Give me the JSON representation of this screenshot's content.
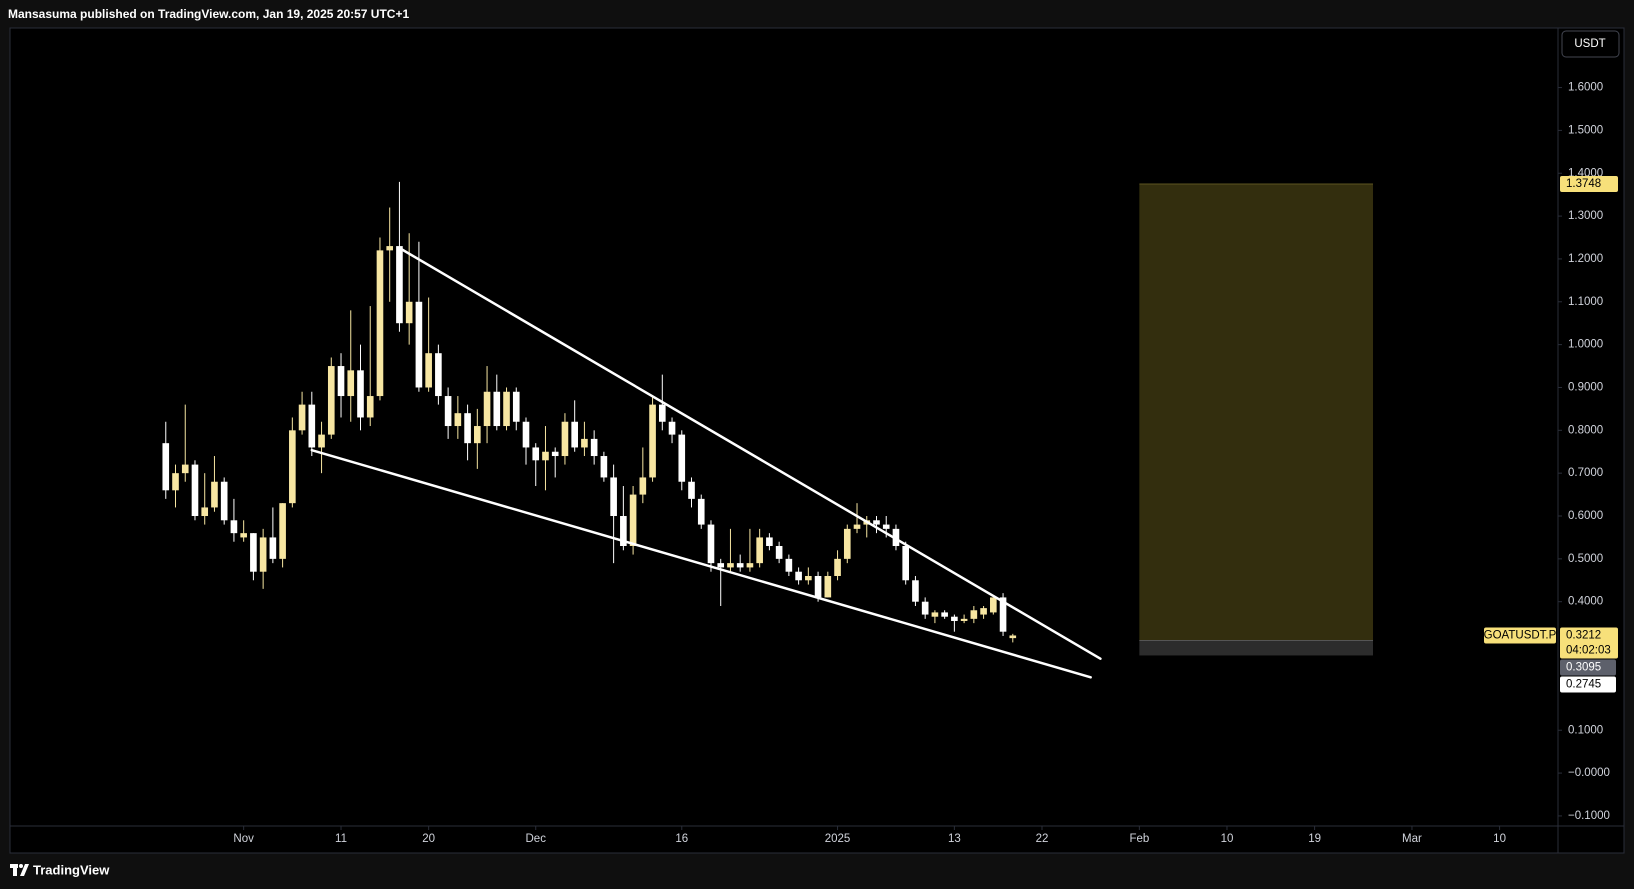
{
  "header": {
    "text": "Mansasuma published on TradingView.com, Jan 19, 2025 20:57 UTC+1"
  },
  "footer": {
    "brand": "TradingView"
  },
  "chart_data": {
    "type": "candlestick",
    "currency": "USDT",
    "up_color": "#f7e6a2",
    "down_color": "#ffffff",
    "x": [
      "2024-10-24",
      "2024-10-25",
      "2024-10-26",
      "2024-10-27",
      "2024-10-28",
      "2024-10-29",
      "2024-10-30",
      "2024-10-31",
      "2024-11-01",
      "2024-11-02",
      "2024-11-03",
      "2024-11-04",
      "2024-11-05",
      "2024-11-06",
      "2024-11-07",
      "2024-11-08",
      "2024-11-09",
      "2024-11-10",
      "2024-11-11",
      "2024-11-12",
      "2024-11-13",
      "2024-11-14",
      "2024-11-15",
      "2024-11-16",
      "2024-11-17",
      "2024-11-18",
      "2024-11-19",
      "2024-11-20",
      "2024-11-21",
      "2024-11-22",
      "2024-11-23",
      "2024-11-24",
      "2024-11-25",
      "2024-11-26",
      "2024-11-27",
      "2024-11-28",
      "2024-11-29",
      "2024-11-30",
      "2024-12-01",
      "2024-12-02",
      "2024-12-03",
      "2024-12-04",
      "2024-12-05",
      "2024-12-06",
      "2024-12-07",
      "2024-12-08",
      "2024-12-09",
      "2024-12-10",
      "2024-12-11",
      "2024-12-12",
      "2024-12-13",
      "2024-12-14",
      "2024-12-15",
      "2024-12-16",
      "2024-12-17",
      "2024-12-18",
      "2024-12-19",
      "2024-12-20",
      "2024-12-21",
      "2024-12-22",
      "2024-12-23",
      "2024-12-24",
      "2024-12-25",
      "2024-12-26",
      "2024-12-27",
      "2024-12-28",
      "2024-12-29",
      "2024-12-30",
      "2024-12-31",
      "2025-01-01",
      "2025-01-02",
      "2025-01-03",
      "2025-01-04",
      "2025-01-05",
      "2025-01-06",
      "2025-01-07",
      "2025-01-08",
      "2025-01-09",
      "2025-01-10",
      "2025-01-11",
      "2025-01-12",
      "2025-01-13",
      "2025-01-14",
      "2025-01-15",
      "2025-01-16",
      "2025-01-17",
      "2025-01-18",
      "2025-01-19"
    ],
    "open": [
      0.77,
      0.66,
      0.7,
      0.72,
      0.6,
      0.62,
      0.68,
      0.59,
      0.55,
      0.56,
      0.47,
      0.55,
      0.5,
      0.63,
      0.8,
      0.86,
      0.76,
      0.79,
      0.95,
      0.88,
      0.94,
      0.83,
      0.88,
      1.22,
      1.23,
      1.05,
      1.1,
      0.9,
      0.98,
      0.88,
      0.81,
      0.84,
      0.77,
      0.81,
      0.89,
      0.81,
      0.89,
      0.82,
      0.76,
      0.73,
      0.75,
      0.74,
      0.82,
      0.76,
      0.78,
      0.74,
      0.69,
      0.6,
      0.53,
      0.65,
      0.69,
      0.86,
      0.82,
      0.79,
      0.68,
      0.64,
      0.58,
      0.49,
      0.48,
      0.49,
      0.48,
      0.49,
      0.55,
      0.53,
      0.5,
      0.47,
      0.45,
      0.46,
      0.41,
      0.46,
      0.5,
      0.57,
      0.58,
      0.59,
      0.58,
      0.57,
      0.53,
      0.45,
      0.4,
      0.365,
      0.375,
      0.365,
      0.355,
      0.36,
      0.37,
      0.375,
      0.41,
      0.315
    ],
    "high": [
      0.82,
      0.72,
      0.86,
      0.73,
      0.7,
      0.74,
      0.69,
      0.64,
      0.59,
      0.56,
      0.57,
      0.62,
      0.63,
      0.83,
      0.89,
      0.89,
      0.82,
      0.97,
      0.98,
      1.08,
      1.0,
      1.09,
      1.25,
      1.32,
      1.38,
      1.26,
      1.24,
      1.11,
      1.0,
      0.9,
      0.88,
      0.86,
      0.85,
      0.95,
      0.93,
      0.9,
      0.9,
      0.83,
      0.77,
      0.81,
      0.76,
      0.84,
      0.87,
      0.82,
      0.8,
      0.75,
      0.72,
      0.67,
      0.67,
      0.76,
      0.88,
      0.93,
      0.83,
      0.8,
      0.69,
      0.65,
      0.59,
      0.5,
      0.57,
      0.51,
      0.57,
      0.57,
      0.56,
      0.54,
      0.51,
      0.48,
      0.48,
      0.47,
      0.47,
      0.52,
      0.58,
      0.63,
      0.6,
      0.6,
      0.6,
      0.58,
      0.54,
      0.46,
      0.41,
      0.38,
      0.38,
      0.37,
      0.37,
      0.39,
      0.39,
      0.41,
      0.42,
      0.325
    ],
    "low": [
      0.64,
      0.62,
      0.68,
      0.59,
      0.58,
      0.61,
      0.58,
      0.54,
      0.54,
      0.45,
      0.43,
      0.49,
      0.48,
      0.62,
      0.79,
      0.74,
      0.7,
      0.78,
      0.83,
      0.82,
      0.8,
      0.81,
      0.87,
      1.1,
      1.03,
      1.0,
      0.89,
      0.89,
      0.86,
      0.78,
      0.78,
      0.73,
      0.71,
      0.77,
      0.8,
      0.8,
      0.8,
      0.72,
      0.67,
      0.66,
      0.69,
      0.72,
      0.75,
      0.74,
      0.72,
      0.68,
      0.49,
      0.52,
      0.51,
      0.63,
      0.68,
      0.8,
      0.77,
      0.66,
      0.62,
      0.57,
      0.47,
      0.39,
      0.47,
      0.47,
      0.47,
      0.48,
      0.52,
      0.49,
      0.46,
      0.44,
      0.44,
      0.4,
      0.41,
      0.45,
      0.49,
      0.56,
      0.55,
      0.56,
      0.55,
      0.52,
      0.44,
      0.39,
      0.36,
      0.35,
      0.36,
      0.33,
      0.35,
      0.35,
      0.36,
      0.37,
      0.32,
      0.305
    ],
    "close": [
      0.66,
      0.7,
      0.72,
      0.6,
      0.62,
      0.68,
      0.59,
      0.56,
      0.56,
      0.47,
      0.55,
      0.5,
      0.63,
      0.8,
      0.86,
      0.76,
      0.79,
      0.95,
      0.88,
      0.94,
      0.83,
      0.88,
      1.22,
      1.23,
      1.05,
      1.1,
      0.9,
      0.98,
      0.88,
      0.81,
      0.84,
      0.77,
      0.81,
      0.89,
      0.81,
      0.89,
      0.82,
      0.76,
      0.73,
      0.75,
      0.74,
      0.82,
      0.76,
      0.78,
      0.74,
      0.69,
      0.6,
      0.53,
      0.65,
      0.69,
      0.86,
      0.82,
      0.79,
      0.68,
      0.64,
      0.58,
      0.49,
      0.48,
      0.49,
      0.48,
      0.49,
      0.55,
      0.53,
      0.5,
      0.47,
      0.45,
      0.46,
      0.41,
      0.46,
      0.5,
      0.57,
      0.58,
      0.59,
      0.58,
      0.57,
      0.53,
      0.45,
      0.4,
      0.37,
      0.375,
      0.365,
      0.355,
      0.36,
      0.38,
      0.385,
      0.41,
      0.33,
      0.3212
    ],
    "xlim": [
      "2024-10-08",
      "2025-03-16"
    ],
    "ylim": [
      -0.1235,
      1.739
    ],
    "xticks": [
      {
        "value": "2024-11-01",
        "label": "Nov"
      },
      {
        "value": "2024-11-11",
        "label": "11"
      },
      {
        "value": "2024-11-20",
        "label": "20"
      },
      {
        "value": "2024-12-01",
        "label": "Dec"
      },
      {
        "value": "2024-12-16",
        "label": "16"
      },
      {
        "value": "2025-01-01",
        "label": "2025"
      },
      {
        "value": "2025-01-13",
        "label": "13"
      },
      {
        "value": "2025-01-22",
        "label": "22"
      },
      {
        "value": "2025-02-01",
        "label": "Feb"
      },
      {
        "value": "2025-02-10",
        "label": "10"
      },
      {
        "value": "2025-02-19",
        "label": "19"
      },
      {
        "value": "2025-03-01",
        "label": "Mar"
      },
      {
        "value": "2025-03-10",
        "label": "10"
      }
    ],
    "yticks": [
      {
        "value": 1.6,
        "label": "1.6000"
      },
      {
        "value": 1.5,
        "label": "1.5000"
      },
      {
        "value": 1.4,
        "label": "1.4000"
      },
      {
        "value": 1.3,
        "label": "1.3000"
      },
      {
        "value": 1.2,
        "label": "1.2000"
      },
      {
        "value": 1.1,
        "label": "1.1000"
      },
      {
        "value": 1.0,
        "label": "1.0000"
      },
      {
        "value": 0.9,
        "label": "0.9000"
      },
      {
        "value": 0.8,
        "label": "0.8000"
      },
      {
        "value": 0.7,
        "label": "0.7000"
      },
      {
        "value": 0.6,
        "label": "0.6000"
      },
      {
        "value": 0.5,
        "label": "0.5000"
      },
      {
        "value": 0.4,
        "label": "0.4000"
      },
      {
        "value": 0.1,
        "label": "0.1000"
      },
      {
        "value": 0,
        "label": "−0.0000"
      },
      {
        "value": -0.1,
        "label": "−0.1000"
      }
    ],
    "lines": [
      {
        "x": [
          "2024-11-17",
          "2025-01-28"
        ],
        "y": [
          1.2255,
          0.267
        ]
      },
      {
        "x": [
          "2024-11-08",
          "2025-01-27"
        ],
        "y": [
          0.7537,
          0.2235
        ]
      }
    ],
    "position": {
      "x": [
        "2025-02-01",
        "2025-02-25"
      ],
      "target": 1.3748,
      "entry": 0.3095,
      "stop": 0.2745
    },
    "last": {
      "symbol": "GOATUSDT.P",
      "price": 0.3212,
      "countdown": "04:02:03"
    }
  }
}
